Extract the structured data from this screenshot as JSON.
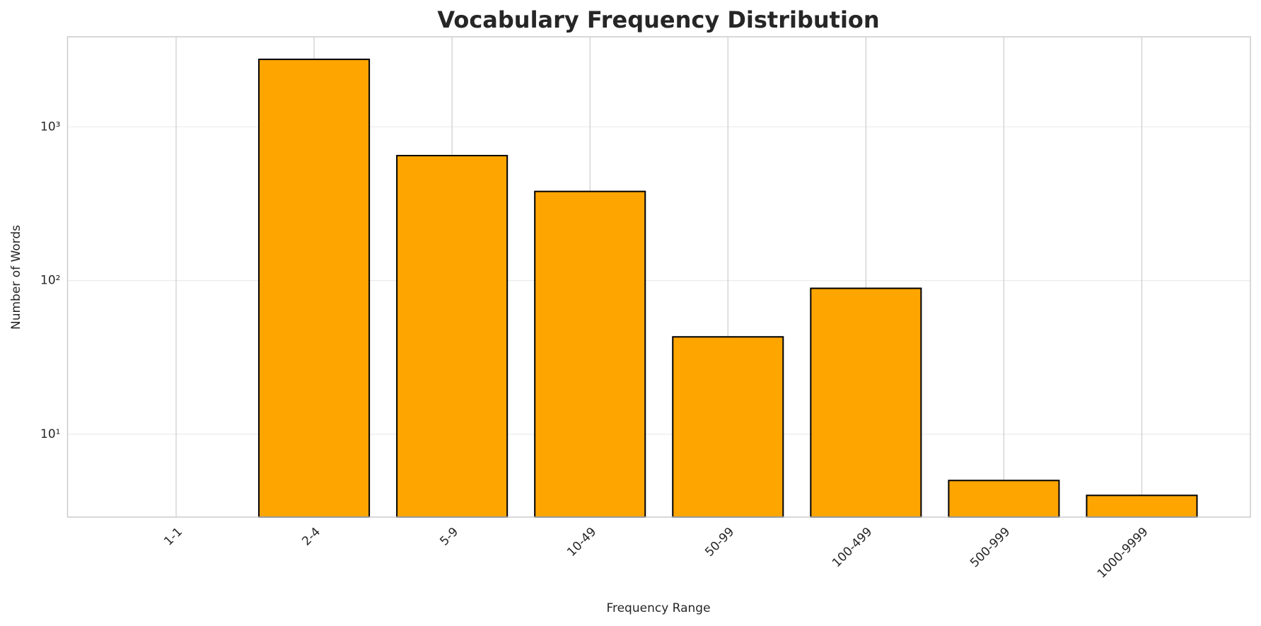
{
  "chart_data": {
    "type": "bar",
    "title": "Vocabulary Frequency Distribution",
    "x_label": "Frequency Range",
    "y_label": "Number of Words",
    "categories": [
      "1-1",
      "2-4",
      "5-9",
      "10-49",
      "50-99",
      "100-499",
      "500-999",
      "1000-9999"
    ],
    "values": [
      0,
      2750,
      650,
      380,
      43,
      89,
      5,
      4
    ],
    "color": "#ffa500",
    "edge_color": "#000000",
    "log_scale": true,
    "ylim": [
      2.89,
      3855
    ],
    "yticks": [
      {
        "value": 10,
        "label": "10¹"
      },
      {
        "value": 100,
        "label": "10²"
      },
      {
        "value": 1000,
        "label": "10³"
      }
    ],
    "grid": true
  }
}
